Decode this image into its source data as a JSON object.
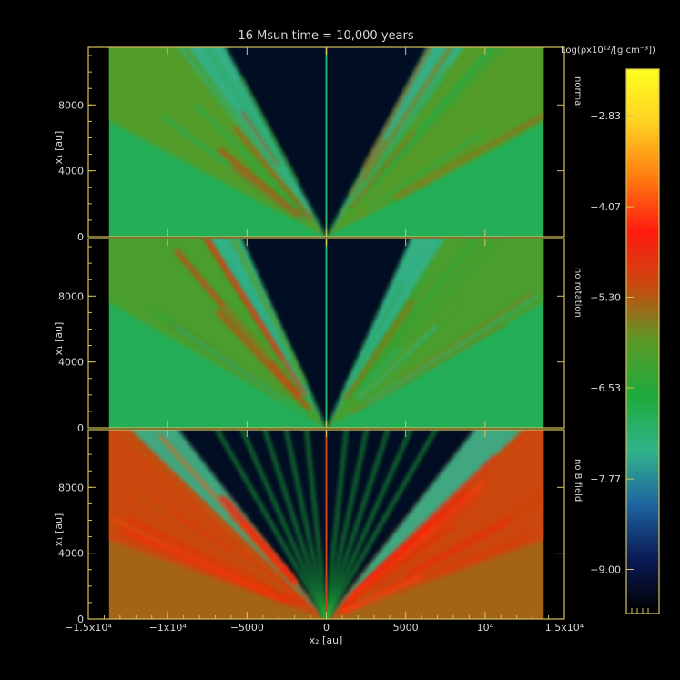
{
  "chart_data": {
    "type": "heatmap",
    "title": "16 Msun time = 10,000 years",
    "xlabel": "x₂ [au]",
    "ylabel": "x₁ [au]",
    "xlim": [
      -15000,
      15000
    ],
    "ylim": [
      0,
      11500
    ],
    "x_ticks": [
      {
        "value": -15000,
        "label": "−1.5x10⁴"
      },
      {
        "value": -10000,
        "label": "−1x10⁴"
      },
      {
        "value": -5000,
        "label": "−5000"
      },
      {
        "value": 0,
        "label": "0"
      },
      {
        "value": 5000,
        "label": "5000"
      },
      {
        "value": 10000,
        "label": "10⁴"
      },
      {
        "value": 15000,
        "label": "1.5x10⁴"
      }
    ],
    "y_ticks": [
      {
        "value": 0,
        "label": "0"
      },
      {
        "value": 4000,
        "label": "4000"
      },
      {
        "value": 8000,
        "label": "8000"
      }
    ],
    "panels": [
      {
        "name": "normal",
        "cavity_half_angle_deg": 28,
        "outflow_spread_deg": 62,
        "background_level": -6.9,
        "shell_level": -6.0
      },
      {
        "name": "no rotation",
        "cavity_half_angle_deg": 24,
        "outflow_spread_deg": 60,
        "background_level": -6.9,
        "shell_level": -6.1
      },
      {
        "name": "no B field",
        "cavity_half_angle_deg": 38,
        "outflow_spread_deg": 70,
        "background_level": -5.4,
        "shell_level": -5.1
      }
    ],
    "colorbar": {
      "label": "Log(ρx10¹²/[g cm⁻³])",
      "range": [
        -9.6,
        -2.2
      ],
      "ticks": [
        {
          "value": -2.83,
          "label": "−2.83"
        },
        {
          "value": -4.07,
          "label": "−4.07"
        },
        {
          "value": -5.3,
          "label": "−5.30"
        },
        {
          "value": -6.53,
          "label": "−6.53"
        },
        {
          "value": -7.77,
          "label": "−7.77"
        },
        {
          "value": -9.0,
          "label": "−9.00"
        }
      ],
      "colors": [
        "#000000",
        "#0a1a55",
        "#1e64a0",
        "#30b48c",
        "#1eaa3c",
        "#5a9a28",
        "#c84a10",
        "#ff1a10",
        "#ff7a10",
        "#ffd020",
        "#ffff20"
      ]
    }
  }
}
